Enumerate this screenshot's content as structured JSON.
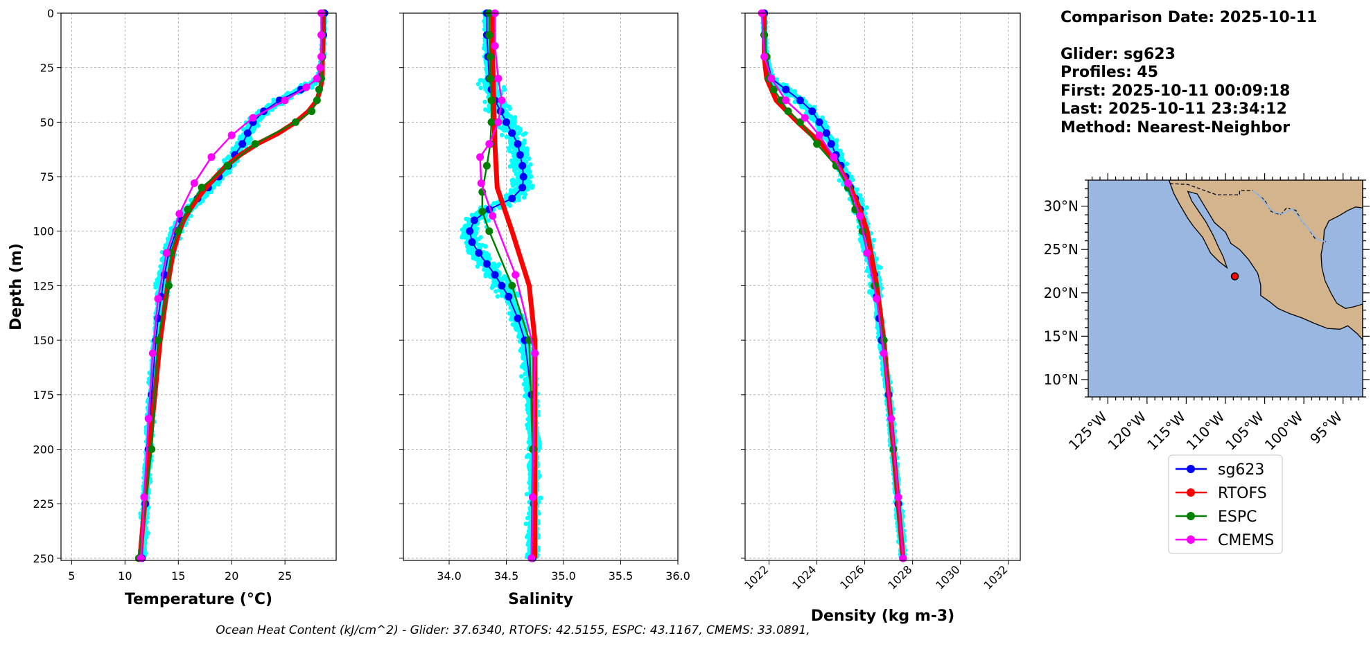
{
  "info": {
    "comparison_date": "Comparison Date: 2025-10-11",
    "glider": "Glider: sg623",
    "profiles": "Profiles: 45",
    "first": "First: 2025-10-11 00:09:18",
    "last": "Last: 2025-10-11 23:34:12",
    "method": "Method: Nearest-Neighbor"
  },
  "footer": "Ocean Heat Content (kJ/cm^2) - Glider: 37.6340,  RTOFS: 42.5155,  ESPC: 43.1167,  CMEMS: 33.0891,",
  "colors": {
    "sg623": "#0000ff",
    "RTOFS": "#ff0000",
    "ESPC": "#008000",
    "CMEMS": "#ff00ff",
    "cloud": "#00ffff",
    "ocean": "#99b7e0",
    "land": "#d4b48c"
  },
  "chart_data": [
    {
      "type": "line",
      "title": "",
      "xlabel": "Temperature (°C)",
      "ylabel": "Depth (m)",
      "xlim": [
        4,
        29.8
      ],
      "ylim": [
        251,
        0
      ],
      "xticks": [
        5,
        10,
        15,
        20,
        25
      ],
      "yticks": [
        0,
        25,
        50,
        75,
        100,
        125,
        150,
        175,
        200,
        225,
        250
      ],
      "grid": true,
      "series": [
        {
          "name": "sg623",
          "depth": [
            0,
            10,
            20,
            30,
            35,
            40,
            45,
            50,
            55,
            60,
            65,
            70,
            75,
            80,
            85,
            90,
            95,
            100,
            110,
            120,
            130,
            140,
            150,
            175,
            200,
            225,
            250
          ],
          "values": [
            28.7,
            28.6,
            28.5,
            28.2,
            26.5,
            24.5,
            23,
            22,
            21.5,
            21,
            20.3,
            19.7,
            18.8,
            17.8,
            16.8,
            15.9,
            15.3,
            14.8,
            14.1,
            13.7,
            13.4,
            13.1,
            12.9,
            12.5,
            12.2,
            11.9,
            11.6
          ]
        },
        {
          "name": "RTOFS",
          "depth": [
            0,
            10,
            20,
            30,
            35,
            40,
            45,
            50,
            55,
            60,
            65,
            70,
            75,
            80,
            85,
            90,
            95,
            100,
            110,
            125,
            150,
            200,
            250
          ],
          "values": [
            28.6,
            28.6,
            28.5,
            28.5,
            28.3,
            28.0,
            27.2,
            26.0,
            24.4,
            22.4,
            20.8,
            19.5,
            18.5,
            17.6,
            16.8,
            16.1,
            15.5,
            15.1,
            14.5,
            14.0,
            13.3,
            12.3,
            11.4
          ]
        },
        {
          "name": "ESPC",
          "depth": [
            0,
            10,
            20,
            30,
            35,
            40,
            45,
            50,
            60,
            70,
            80,
            90,
            100,
            110,
            125,
            150,
            200,
            250
          ],
          "values": [
            28.5,
            28.5,
            28.5,
            28.4,
            28.2,
            28.0,
            27.5,
            26.0,
            22.2,
            19.6,
            17.2,
            15.9,
            15.0,
            14.3,
            14.1,
            13.1,
            12.5,
            11.3
          ]
        },
        {
          "name": "CMEMS",
          "depth": [
            0,
            10,
            20,
            25,
            30,
            34,
            40,
            48,
            56,
            66,
            78,
            92,
            110,
            131,
            156,
            186,
            222,
            250
          ],
          "values": [
            28.4,
            28.4,
            28.4,
            28.3,
            28.0,
            27.0,
            25.0,
            22.0,
            20.0,
            18.1,
            16.5,
            15.1,
            13.9,
            13.1,
            12.6,
            12.2,
            11.8,
            11.5
          ]
        }
      ]
    },
    {
      "type": "line",
      "title": "",
      "xlabel": "Salinity",
      "ylabel": "",
      "xlim": [
        33.6,
        36.0
      ],
      "ylim": [
        251,
        0
      ],
      "xticks": [
        34.0,
        34.5,
        35.0,
        35.5,
        36.0
      ],
      "grid": true,
      "series": [
        {
          "name": "sg623",
          "depth": [
            0,
            10,
            20,
            30,
            35,
            40,
            45,
            50,
            55,
            60,
            65,
            70,
            75,
            80,
            85,
            90,
            95,
            100,
            105,
            110,
            115,
            120,
            125,
            130,
            140,
            150,
            175,
            200,
            225,
            250
          ],
          "values": [
            34.33,
            34.33,
            34.34,
            34.35,
            34.37,
            34.4,
            34.45,
            34.5,
            34.55,
            34.6,
            34.62,
            34.64,
            34.65,
            34.64,
            34.55,
            34.35,
            34.22,
            34.18,
            34.2,
            34.26,
            34.33,
            34.4,
            34.46,
            34.52,
            34.6,
            34.66,
            34.72,
            34.74,
            34.74,
            34.73
          ]
        },
        {
          "name": "RTOFS",
          "depth": [
            0,
            20,
            40,
            60,
            80,
            100,
            125,
            150,
            200,
            250
          ],
          "values": [
            34.38,
            34.38,
            34.39,
            34.4,
            34.42,
            34.55,
            34.7,
            34.75,
            34.75,
            34.75
          ]
        },
        {
          "name": "ESPC",
          "depth": [
            0,
            10,
            20,
            30,
            40,
            50,
            60,
            70,
            82,
            91,
            100,
            125,
            150,
            200,
            250
          ],
          "values": [
            34.35,
            34.35,
            34.36,
            34.36,
            34.37,
            34.37,
            34.36,
            34.33,
            34.29,
            34.29,
            34.35,
            34.55,
            34.7,
            34.73,
            34.72
          ]
        },
        {
          "name": "CMEMS",
          "depth": [
            0,
            15,
            30,
            40,
            50,
            60,
            66,
            78,
            93,
            120,
            156,
            222,
            250
          ],
          "values": [
            34.4,
            34.4,
            34.43,
            34.46,
            34.43,
            34.35,
            34.27,
            34.28,
            34.38,
            34.58,
            34.75,
            34.73,
            34.72
          ]
        }
      ]
    },
    {
      "type": "line",
      "title": "",
      "xlabel": "Density (kg m-3)",
      "ylabel": "",
      "xlim": [
        1021.0,
        1032.5
      ],
      "ylim": [
        251,
        0
      ],
      "xticks": [
        1022,
        1024,
        1026,
        1028,
        1030,
        1032
      ],
      "grid": true,
      "series": [
        {
          "name": "sg623",
          "depth": [
            0,
            10,
            20,
            30,
            35,
            40,
            45,
            50,
            55,
            60,
            65,
            70,
            75,
            80,
            85,
            90,
            95,
            100,
            110,
            120,
            130,
            140,
            150,
            175,
            200,
            225,
            250
          ],
          "values": [
            1021.8,
            1021.8,
            1021.9,
            1022.1,
            1022.7,
            1023.3,
            1023.8,
            1024.1,
            1024.4,
            1024.6,
            1024.8,
            1025.0,
            1025.2,
            1025.4,
            1025.6,
            1025.8,
            1025.9,
            1026.0,
            1026.2,
            1026.4,
            1026.5,
            1026.6,
            1026.7,
            1027.0,
            1027.2,
            1027.4,
            1027.6
          ]
        },
        {
          "name": "RTOFS",
          "depth": [
            0,
            20,
            30,
            40,
            50,
            60,
            70,
            80,
            90,
            100,
            125,
            150,
            200,
            250
          ],
          "values": [
            1021.8,
            1021.8,
            1021.9,
            1022.3,
            1023.2,
            1024.2,
            1024.9,
            1025.4,
            1025.8,
            1026.1,
            1026.5,
            1026.8,
            1027.2,
            1027.6
          ]
        },
        {
          "name": "ESPC",
          "depth": [
            0,
            10,
            20,
            30,
            35,
            40,
            45,
            50,
            60,
            70,
            80,
            90,
            100,
            110,
            125,
            150,
            200,
            250
          ],
          "values": [
            1021.7,
            1021.8,
            1021.9,
            1022.0,
            1022.2,
            1022.5,
            1022.8,
            1023.3,
            1024.0,
            1024.8,
            1025.3,
            1025.6,
            1025.9,
            1026.1,
            1026.4,
            1026.8,
            1027.2,
            1027.6
          ]
        },
        {
          "name": "CMEMS",
          "depth": [
            0,
            20,
            30,
            40,
            48,
            56,
            66,
            78,
            93,
            110,
            131,
            156,
            186,
            222,
            250
          ],
          "values": [
            1021.7,
            1021.8,
            1022.1,
            1022.7,
            1023.5,
            1024.1,
            1024.7,
            1025.3,
            1025.8,
            1026.1,
            1026.5,
            1026.8,
            1027.1,
            1027.4,
            1027.6
          ]
        }
      ]
    }
  ],
  "legend": [
    "sg623",
    "RTOFS",
    "ESPC",
    "CMEMS"
  ],
  "map": {
    "lon_range": [
      -127.5,
      -92.5
    ],
    "lat_range": [
      8,
      33
    ],
    "lon_ticks": [
      -125,
      -120,
      -115,
      -110,
      -105,
      -100,
      -95
    ],
    "lat_ticks": [
      10,
      15,
      20,
      25,
      30
    ],
    "lon_labels": [
      "125°W",
      "120°W",
      "115°W",
      "110°W",
      "105°W",
      "100°W",
      "95°W"
    ],
    "lat_labels": [
      "10°N",
      "15°N",
      "20°N",
      "25°N",
      "30°N"
    ],
    "glider_position": [
      -108.8,
      21.9
    ]
  }
}
